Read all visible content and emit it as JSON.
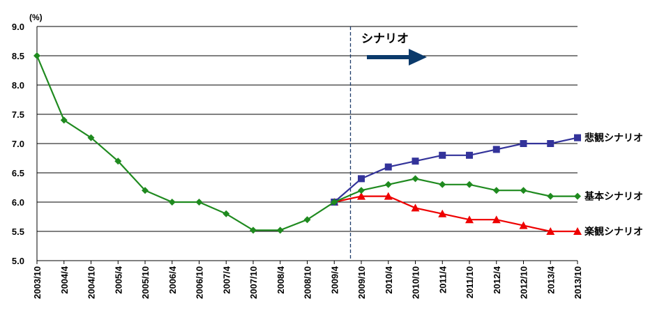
{
  "chart_data": {
    "type": "line",
    "ylabel": "(%)",
    "ylim": [
      5.0,
      9.0
    ],
    "yticks": [
      5.0,
      5.5,
      6.0,
      6.5,
      7.0,
      7.5,
      8.0,
      8.5,
      9.0
    ],
    "ytick_labels": [
      "5.0",
      "5.5",
      "6.0",
      "6.5",
      "7.0",
      "7.5",
      "8.0",
      "8.5",
      "9.0"
    ],
    "categories": [
      "2003/10",
      "2004/4",
      "2004/10",
      "2005/4",
      "2005/10",
      "2006/4",
      "2006/10",
      "2007/4",
      "2007/10",
      "2008/4",
      "2008/10",
      "2009/4",
      "2009/10",
      "2010/4",
      "2010/10",
      "2011/4",
      "2011/10",
      "2012/4",
      "2012/10",
      "2013/4",
      "2013/10"
    ],
    "grid": true,
    "annotation": {
      "label": "シナリオ",
      "divider_after_index": 11.6
    },
    "series": [
      {
        "name": "基本シナリオ",
        "color": "#1f8a1f",
        "marker": "diamond",
        "values": [
          8.5,
          7.4,
          7.1,
          6.7,
          6.2,
          6.0,
          6.0,
          5.8,
          5.52,
          5.52,
          5.7,
          6.0,
          6.2,
          6.3,
          6.4,
          6.3,
          6.3,
          6.2,
          6.2,
          6.1,
          6.1
        ]
      },
      {
        "name": "悲観シナリオ",
        "color": "#33339a",
        "marker": "square",
        "values": [
          null,
          null,
          null,
          null,
          null,
          null,
          null,
          null,
          null,
          null,
          null,
          6.0,
          6.4,
          6.6,
          6.7,
          6.8,
          6.8,
          6.9,
          7.0,
          7.0,
          7.1
        ]
      },
      {
        "name": "楽観シナリオ",
        "color": "#ee0000",
        "marker": "triangle",
        "values": [
          null,
          null,
          null,
          null,
          null,
          null,
          null,
          null,
          null,
          null,
          null,
          6.0,
          6.1,
          6.1,
          5.9,
          5.8,
          5.7,
          5.7,
          5.6,
          5.5,
          5.5
        ]
      }
    ],
    "arrow_color": "#0b3a6b"
  }
}
